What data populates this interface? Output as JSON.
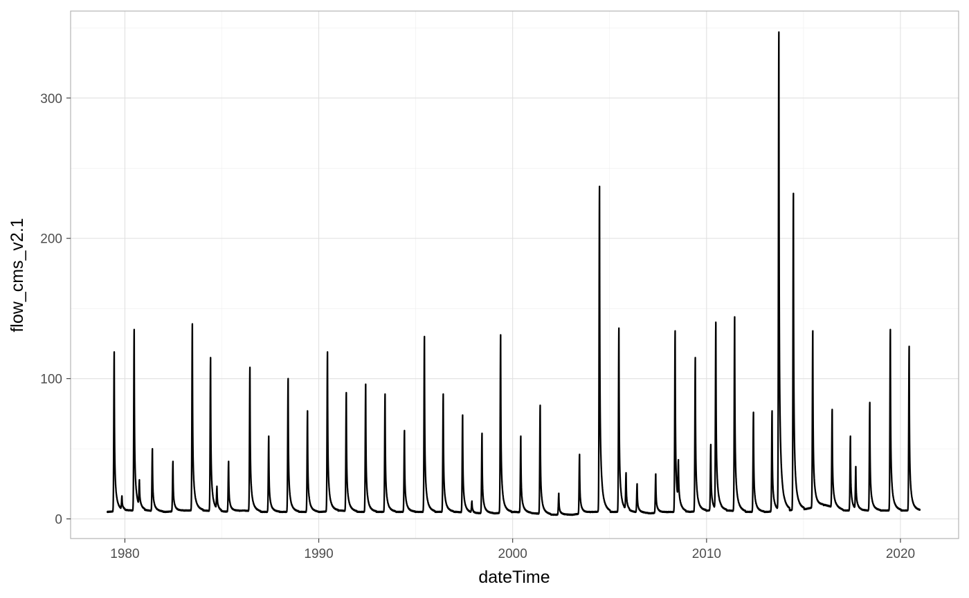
{
  "chart_data": {
    "type": "line",
    "title": "",
    "xlabel": "dateTime",
    "ylabel": "flow_cms_v2.1",
    "xlim": [
      1977.2,
      2023.0
    ],
    "ylim": [
      -14,
      362
    ],
    "x_ticks": [
      1980,
      1990,
      2000,
      2010,
      2020
    ],
    "x_tick_labels": [
      "1980",
      "1990",
      "2000",
      "2010",
      "2020"
    ],
    "y_ticks": [
      0,
      100,
      200,
      300
    ],
    "y_tick_labels": [
      "0",
      "100",
      "200",
      "300"
    ],
    "grid": true,
    "legend": "none",
    "line_color": "#000000",
    "x_start": 1979.1,
    "x_end": 2021.0,
    "series": [
      {
        "baseflow": [
          5,
          6,
          6,
          5,
          6,
          6,
          5,
          6,
          5,
          5,
          5,
          5,
          6,
          5,
          5,
          5,
          5,
          5,
          5,
          4,
          4,
          5,
          4,
          3,
          3,
          5,
          5,
          5,
          4,
          5,
          5,
          6,
          6,
          5,
          5,
          6,
          7,
          10,
          6,
          6,
          6,
          6,
          6
        ],
        "peaks": [
          [
            1979.45,
            119
          ],
          [
            1979.85,
            15
          ],
          [
            1980.48,
            135
          ],
          [
            1980.75,
            24
          ],
          [
            1981.42,
            50
          ],
          [
            1982.48,
            41
          ],
          [
            1983.48,
            139
          ],
          [
            1984.42,
            115
          ],
          [
            1984.75,
            21
          ],
          [
            1985.35,
            41
          ],
          [
            1986.45,
            108
          ],
          [
            1987.42,
            59
          ],
          [
            1988.42,
            100
          ],
          [
            1989.42,
            77
          ],
          [
            1990.45,
            119
          ],
          [
            1991.42,
            90
          ],
          [
            1992.42,
            96
          ],
          [
            1993.42,
            89
          ],
          [
            1994.42,
            63
          ],
          [
            1995.45,
            130
          ],
          [
            1996.42,
            89
          ],
          [
            1997.42,
            74
          ],
          [
            1997.9,
            12
          ],
          [
            1998.42,
            61
          ],
          [
            1999.38,
            131
          ],
          [
            2000.42,
            59
          ],
          [
            2001.42,
            81
          ],
          [
            2002.38,
            18
          ],
          [
            2003.45,
            46
          ],
          [
            2004.48,
            237
          ],
          [
            2005.48,
            136
          ],
          [
            2005.85,
            31
          ],
          [
            2006.42,
            25
          ],
          [
            2007.38,
            32
          ],
          [
            2008.38,
            134
          ],
          [
            2008.55,
            34
          ],
          [
            2009.42,
            115
          ],
          [
            2010.22,
            53
          ],
          [
            2010.48,
            139
          ],
          [
            2011.45,
            144
          ],
          [
            2012.42,
            76
          ],
          [
            2013.38,
            77
          ],
          [
            2013.73,
            347
          ],
          [
            2014.48,
            232
          ],
          [
            2015.48,
            134
          ],
          [
            2016.48,
            78
          ],
          [
            2017.42,
            59
          ],
          [
            2017.7,
            36
          ],
          [
            2018.42,
            83
          ],
          [
            2019.48,
            135
          ],
          [
            2020.45,
            123
          ]
        ]
      }
    ]
  }
}
